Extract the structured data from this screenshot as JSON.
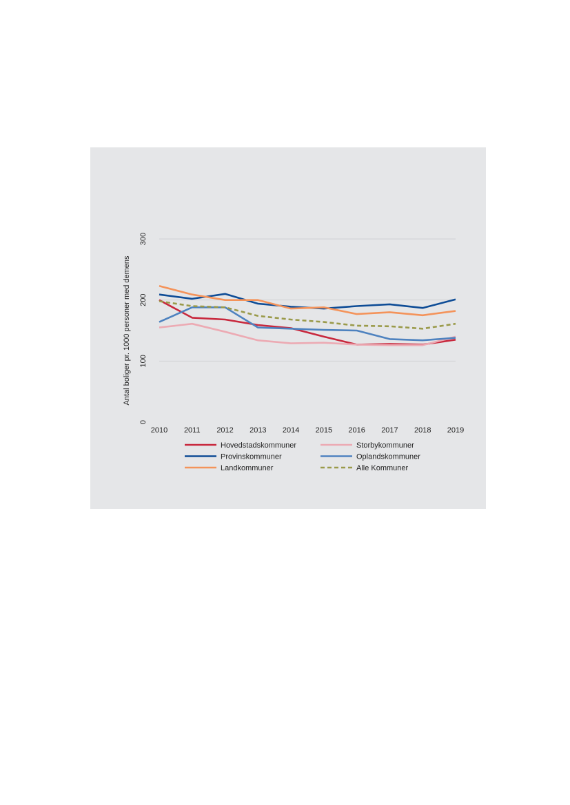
{
  "chart_data": {
    "type": "line",
    "title": "",
    "xlabel": "",
    "ylabel": "Antal boliger pr. 1000 personer med demens",
    "x": [
      "2010",
      "2011",
      "2012",
      "2013",
      "2014",
      "2015",
      "2016",
      "2017",
      "2018",
      "2019"
    ],
    "yticks": [
      "0",
      "100",
      "200",
      "300"
    ],
    "ylim": [
      0,
      300
    ],
    "grid": "horizontal",
    "legend_position": "bottom",
    "series": [
      {
        "name": "Hovedstadskommuner",
        "color": "#c8283d",
        "dash": false,
        "values": [
          200,
          171,
          168,
          159,
          154,
          140,
          127,
          128,
          127,
          135
        ]
      },
      {
        "name": "Storbykommuner",
        "color": "#ecaab3",
        "dash": false,
        "values": [
          155,
          161,
          148,
          134,
          129,
          130,
          127,
          126,
          126,
          140
        ]
      },
      {
        "name": "Provinskommuner",
        "color": "#0e4c96",
        "dash": false,
        "values": [
          209,
          202,
          210,
          194,
          189,
          186,
          190,
          193,
          187,
          201
        ]
      },
      {
        "name": "Oplandskommuner",
        "color": "#4e82bf",
        "dash": false,
        "values": [
          164,
          188,
          188,
          155,
          153,
          151,
          150,
          136,
          134,
          138
        ]
      },
      {
        "name": "Landkommuner",
        "color": "#f4935a",
        "dash": false,
        "values": [
          223,
          209,
          200,
          200,
          186,
          188,
          177,
          180,
          175,
          182
        ]
      },
      {
        "name": "Alle Kommuner",
        "color": "#9a9a4a",
        "dash": true,
        "values": [
          198,
          190,
          188,
          174,
          168,
          164,
          158,
          157,
          153,
          161
        ]
      }
    ]
  }
}
